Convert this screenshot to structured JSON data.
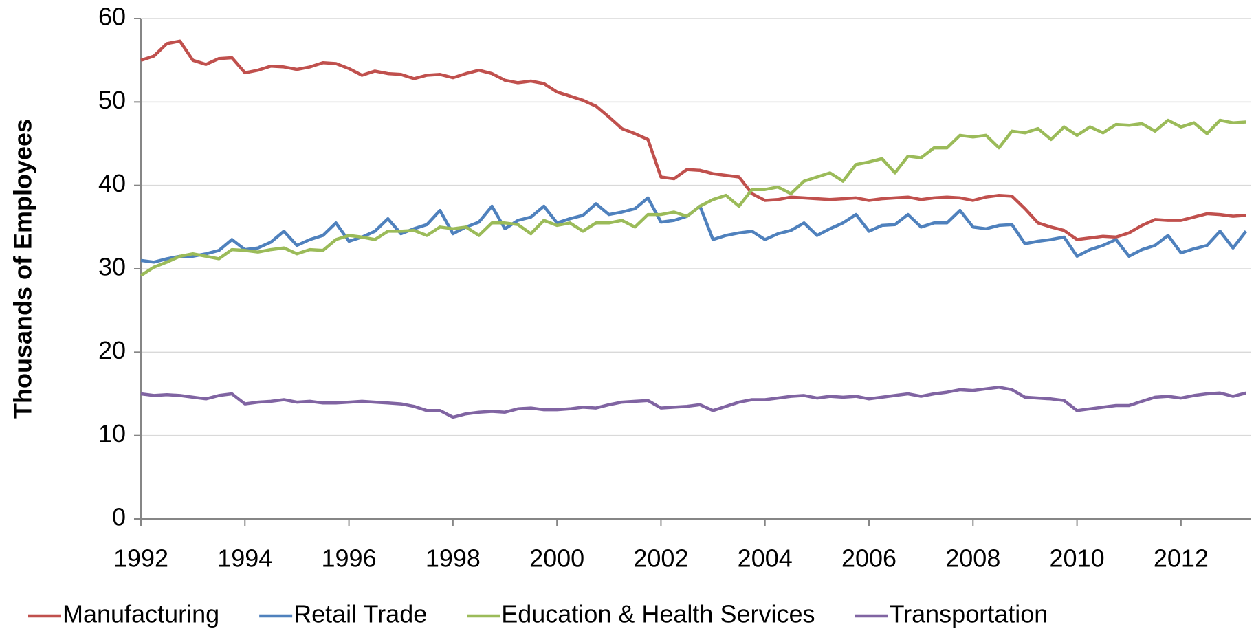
{
  "chart_data": {
    "type": "line",
    "y_label": "Thousands of Employees",
    "x": [
      1992,
      1992.25,
      1992.5,
      1992.75,
      1993,
      1993.25,
      1993.5,
      1993.75,
      1994,
      1994.25,
      1994.5,
      1994.75,
      1995,
      1995.25,
      1995.5,
      1995.75,
      1996,
      1996.25,
      1996.5,
      1996.75,
      1997,
      1997.25,
      1997.5,
      1997.75,
      1998,
      1998.25,
      1998.5,
      1998.75,
      1999,
      1999.25,
      1999.5,
      1999.75,
      2000,
      2000.25,
      2000.5,
      2000.75,
      2001,
      2001.25,
      2001.5,
      2001.75,
      2002,
      2002.25,
      2002.5,
      2002.75,
      2003,
      2003.25,
      2003.5,
      2003.75,
      2004,
      2004.25,
      2004.5,
      2004.75,
      2005,
      2005.25,
      2005.5,
      2005.75,
      2006,
      2006.25,
      2006.5,
      2006.75,
      2007,
      2007.25,
      2007.5,
      2007.75,
      2008,
      2008.25,
      2008.5,
      2008.75,
      2009,
      2009.25,
      2009.5,
      2009.75,
      2010,
      2010.25,
      2010.5,
      2010.75,
      2011,
      2011.25,
      2011.5,
      2011.75,
      2012,
      2012.25,
      2012.5,
      2012.75,
      2013,
      2013.25
    ],
    "series": [
      {
        "name": "Manufacturing",
        "color": "#c0504d",
        "values": [
          55,
          55.5,
          57,
          57.3,
          55,
          54.5,
          55.2,
          55.3,
          53.5,
          53.8,
          54.3,
          54.2,
          53.9,
          54.2,
          54.7,
          54.6,
          54,
          53.2,
          53.7,
          53.4,
          53.3,
          52.8,
          53.2,
          53.3,
          52.9,
          53.4,
          53.8,
          53.4,
          52.6,
          52.3,
          52.5,
          52.2,
          51.2,
          50.7,
          50.2,
          49.5,
          48.2,
          46.8,
          46.2,
          45.5,
          41,
          40.8,
          41.9,
          41.8,
          41.4,
          41.2,
          41,
          39,
          38.2,
          38.3,
          38.6,
          38.5,
          38.4,
          38.3,
          38.4,
          38.5,
          38.2,
          38.4,
          38.5,
          38.6,
          38.3,
          38.5,
          38.6,
          38.5,
          38.2,
          38.6,
          38.8,
          38.7,
          37.2,
          35.5,
          35,
          34.6,
          33.5,
          33.7,
          33.9,
          33.8,
          34.3,
          35.2,
          35.9,
          35.8,
          35.8,
          36.2,
          36.6,
          36.5,
          36.3,
          36.4
        ]
      },
      {
        "name": "Retail Trade",
        "color": "#4f81bd",
        "values": [
          31,
          30.8,
          31.2,
          31.5,
          31.5,
          31.8,
          32.2,
          33.5,
          32.3,
          32.5,
          33.2,
          34.5,
          32.8,
          33.5,
          34,
          35.5,
          33.3,
          33.8,
          34.5,
          36,
          34.2,
          34.8,
          35.3,
          37,
          34.2,
          35,
          35.6,
          37.5,
          34.8,
          35.8,
          36.2,
          37.5,
          35.5,
          36,
          36.4,
          37.8,
          36.5,
          36.8,
          37.2,
          38.5,
          35.6,
          35.8,
          36.3,
          37.5,
          33.5,
          34,
          34.3,
          34.5,
          33.5,
          34.2,
          34.6,
          35.5,
          34,
          34.8,
          35.5,
          36.5,
          34.5,
          35.2,
          35.3,
          36.5,
          35,
          35.5,
          35.5,
          37,
          35,
          34.8,
          35.2,
          35.3,
          33,
          33.3,
          33.5,
          33.8,
          31.5,
          32.3,
          32.8,
          33.5,
          31.5,
          32.3,
          32.8,
          34,
          31.9,
          32.4,
          32.8,
          34.5,
          32.5,
          34.5
        ]
      },
      {
        "name": "Education & Health Services",
        "color": "#9bbb59",
        "values": [
          29.2,
          30.2,
          30.8,
          31.5,
          31.8,
          31.5,
          31.2,
          32.3,
          32.2,
          32,
          32.3,
          32.5,
          31.8,
          32.3,
          32.2,
          33.5,
          34,
          33.8,
          33.5,
          34.5,
          34.5,
          34.6,
          34,
          35,
          34.8,
          35,
          34,
          35.5,
          35.5,
          35.3,
          34.2,
          35.8,
          35.2,
          35.5,
          34.5,
          35.5,
          35.5,
          35.8,
          35,
          36.5,
          36.5,
          36.8,
          36.3,
          37.5,
          38.3,
          38.8,
          37.5,
          39.5,
          39.5,
          39.8,
          39,
          40.5,
          41,
          41.5,
          40.5,
          42.5,
          42.8,
          43.2,
          41.5,
          43.5,
          43.3,
          44.5,
          44.5,
          46,
          45.8,
          46,
          44.5,
          46.5,
          46.3,
          46.8,
          45.5,
          47,
          46,
          47,
          46.3,
          47.3,
          47.2,
          47.4,
          46.5,
          47.8,
          47,
          47.5,
          46.2,
          47.8,
          47.5,
          47.6
        ]
      },
      {
        "name": "Transportation",
        "color": "#8064a2",
        "values": [
          15,
          14.8,
          14.9,
          14.8,
          14.6,
          14.4,
          14.8,
          15,
          13.8,
          14,
          14.1,
          14.3,
          14,
          14.1,
          13.9,
          13.9,
          14,
          14.1,
          14,
          13.9,
          13.8,
          13.5,
          13,
          13,
          12.2,
          12.6,
          12.8,
          12.9,
          12.8,
          13.2,
          13.3,
          13.1,
          13.1,
          13.2,
          13.4,
          13.3,
          13.7,
          14,
          14.1,
          14.2,
          13.3,
          13.4,
          13.5,
          13.7,
          13,
          13.5,
          14,
          14.3,
          14.3,
          14.5,
          14.7,
          14.8,
          14.5,
          14.7,
          14.6,
          14.7,
          14.4,
          14.6,
          14.8,
          15,
          14.7,
          15,
          15.2,
          15.5,
          15.4,
          15.6,
          15.8,
          15.5,
          14.6,
          14.5,
          14.4,
          14.2,
          13,
          13.2,
          13.4,
          13.6,
          13.6,
          14.1,
          14.6,
          14.7,
          14.5,
          14.8,
          15,
          15.1,
          14.7,
          15.1
        ]
      }
    ],
    "xlim": [
      1992,
      2013.35
    ],
    "xticks": [
      1992,
      1994,
      1996,
      1998,
      2000,
      2002,
      2004,
      2006,
      2008,
      2010,
      2012
    ],
    "ylim": [
      0,
      60
    ],
    "yticks": [
      0,
      10,
      20,
      30,
      40,
      50,
      60
    ],
    "grid": true,
    "legend": "bottom"
  }
}
